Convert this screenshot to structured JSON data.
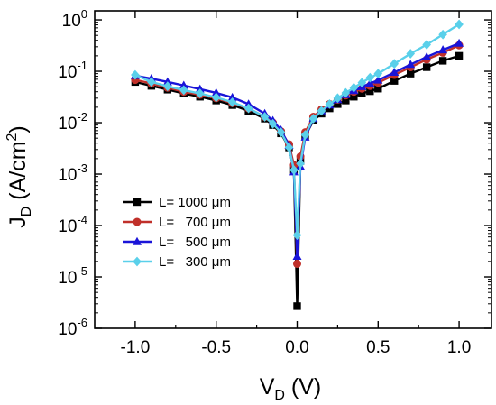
{
  "chart_data": {
    "type": "line",
    "x_axis": {
      "title_main": "V",
      "title_sub": "D",
      "title_unit": " (V)",
      "range": [
        -1.25,
        1.2
      ],
      "ticks": [
        -1.0,
        -0.5,
        0.0,
        0.5,
        1.0
      ],
      "tick_labels": [
        "-1.0",
        "-0.5",
        "0.0",
        "0.5",
        "1.0"
      ]
    },
    "y_axis": {
      "title_main": "J",
      "title_sub": "D",
      "title_unit": " (A/cm",
      "title_sup": "2",
      "title_close": ")",
      "scale": "log",
      "range": [
        1e-06,
        1.5
      ],
      "ticks": [
        {
          "value": 1e-06,
          "base": "10",
          "exp": "-6"
        },
        {
          "value": 1e-05,
          "base": "10",
          "exp": "-5"
        },
        {
          "value": 0.0001,
          "base": "10",
          "exp": "-4"
        },
        {
          "value": 0.001,
          "base": "10",
          "exp": "-3"
        },
        {
          "value": 0.01,
          "base": "10",
          "exp": "-2"
        },
        {
          "value": 0.1,
          "base": "10",
          "exp": "-1"
        },
        {
          "value": 1,
          "base": "10",
          "exp": "0"
        }
      ]
    },
    "grid": false,
    "legend_position": "center-left",
    "series": [
      {
        "name": "L= 1000 μm",
        "color": "#000000",
        "marker": "square",
        "x": [
          -1.0,
          -0.9,
          -0.8,
          -0.7,
          -0.6,
          -0.5,
          -0.4,
          -0.3,
          -0.2,
          -0.15,
          -0.1,
          -0.05,
          -0.02,
          0.0,
          0.02,
          0.05,
          0.1,
          0.15,
          0.2,
          0.25,
          0.3,
          0.35,
          0.4,
          0.45,
          0.5,
          0.6,
          0.7,
          0.8,
          0.9,
          1.0
        ],
        "y": [
          0.062,
          0.052,
          0.044,
          0.037,
          0.032,
          0.027,
          0.022,
          0.017,
          0.012,
          0.009,
          0.0062,
          0.0033,
          0.0012,
          2.7e-06,
          0.0018,
          0.0055,
          0.011,
          0.015,
          0.019,
          0.023,
          0.027,
          0.032,
          0.037,
          0.041,
          0.046,
          0.065,
          0.09,
          0.12,
          0.16,
          0.2
        ]
      },
      {
        "name": "L=   700 μm",
        "color": "#c0302a",
        "marker": "circle",
        "x": [
          -1.0,
          -0.9,
          -0.8,
          -0.7,
          -0.6,
          -0.5,
          -0.4,
          -0.3,
          -0.2,
          -0.15,
          -0.1,
          -0.05,
          -0.02,
          0.0,
          0.02,
          0.05,
          0.1,
          0.15,
          0.2,
          0.25,
          0.3,
          0.35,
          0.4,
          0.45,
          0.5,
          0.6,
          0.7,
          0.8,
          0.9,
          1.0
        ],
        "y": [
          0.068,
          0.058,
          0.048,
          0.04,
          0.035,
          0.03,
          0.024,
          0.019,
          0.013,
          0.01,
          0.0068,
          0.0038,
          0.0015,
          1.8e-05,
          0.0022,
          0.0065,
          0.013,
          0.018,
          0.023,
          0.028,
          0.034,
          0.04,
          0.046,
          0.052,
          0.06,
          0.085,
          0.12,
          0.17,
          0.23,
          0.32
        ]
      },
      {
        "name": "L=   500 μm",
        "color": "#1a14d8",
        "marker": "triangle",
        "x": [
          -1.0,
          -0.9,
          -0.8,
          -0.7,
          -0.6,
          -0.5,
          -0.4,
          -0.3,
          -0.2,
          -0.15,
          -0.1,
          -0.05,
          -0.02,
          0.0,
          0.02,
          0.05,
          0.1,
          0.15,
          0.2,
          0.25,
          0.3,
          0.35,
          0.4,
          0.45,
          0.5,
          0.6,
          0.7,
          0.8,
          0.9,
          1.0
        ],
        "y": [
          0.082,
          0.072,
          0.062,
          0.053,
          0.045,
          0.038,
          0.031,
          0.023,
          0.015,
          0.011,
          0.0072,
          0.0036,
          0.0011,
          2.5e-05,
          0.0014,
          0.0052,
          0.012,
          0.017,
          0.022,
          0.028,
          0.035,
          0.042,
          0.05,
          0.058,
          0.067,
          0.095,
          0.135,
          0.19,
          0.26,
          0.35
        ]
      },
      {
        "name": "L=   300 μm",
        "color": "#5ad0ea",
        "marker": "diamond",
        "x": [
          -1.0,
          -0.9,
          -0.8,
          -0.7,
          -0.6,
          -0.5,
          -0.4,
          -0.3,
          -0.2,
          -0.15,
          -0.1,
          -0.05,
          -0.02,
          0.0,
          0.02,
          0.05,
          0.1,
          0.15,
          0.2,
          0.25,
          0.3,
          0.35,
          0.4,
          0.45,
          0.5,
          0.6,
          0.7,
          0.8,
          0.9,
          1.0
        ],
        "y": [
          0.085,
          0.062,
          0.051,
          0.043,
          0.037,
          0.031,
          0.025,
          0.019,
          0.013,
          0.0095,
          0.0065,
          0.0033,
          0.0012,
          6.5e-05,
          0.0016,
          0.0058,
          0.012,
          0.017,
          0.023,
          0.03,
          0.038,
          0.048,
          0.06,
          0.075,
          0.09,
          0.14,
          0.22,
          0.33,
          0.52,
          0.82
        ]
      }
    ]
  }
}
